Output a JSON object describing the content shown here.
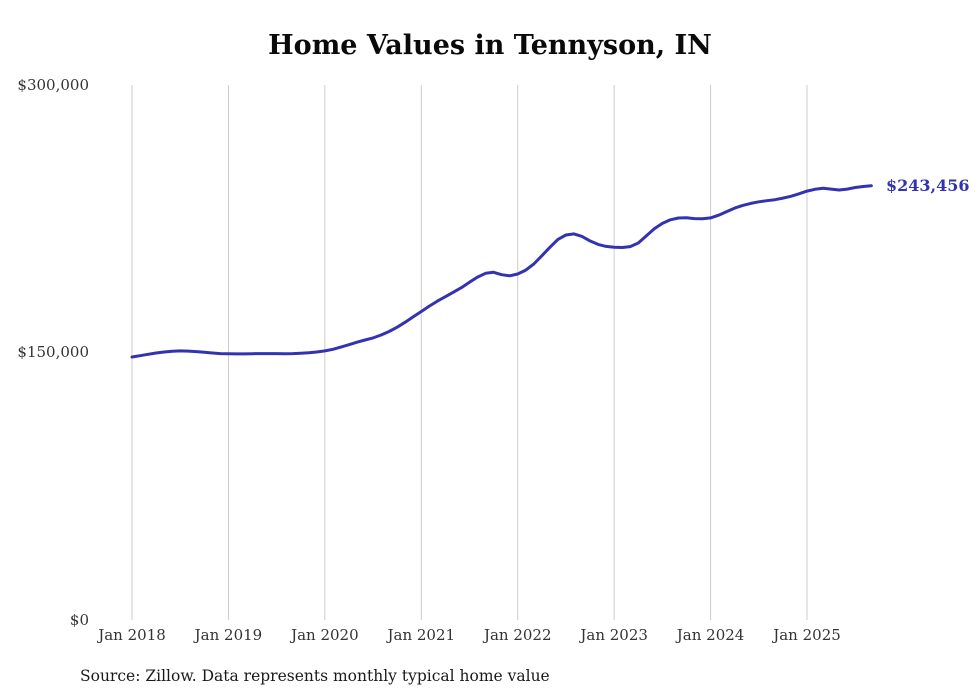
{
  "chart_data": {
    "type": "line",
    "title": "Home Values in Tennyson, IN",
    "source": "Source: Zillow. Data represents monthly typical home value",
    "end_label": "$243,456",
    "current_value": 243456,
    "line_color": "#3333b2",
    "grid_color": "#cccccc",
    "tick_text_color": "#333333",
    "ylim": [
      0,
      300000
    ],
    "grid": "vertical-only",
    "legend": "none",
    "y_ticks": [
      {
        "label": "$0",
        "value": 0
      },
      {
        "label": "$150,000",
        "value": 150000
      },
      {
        "label": "$300,000",
        "value": 300000
      }
    ],
    "x_ticks": [
      "Jan 2018",
      "Jan 2019",
      "Jan 2020",
      "Jan 2021",
      "Jan 2022",
      "Jan 2023",
      "Jan 2024",
      "Jan 2025"
    ],
    "x": [
      "2018-01",
      "2018-02",
      "2018-03",
      "2018-04",
      "2018-05",
      "2018-06",
      "2018-07",
      "2018-08",
      "2018-09",
      "2018-10",
      "2018-11",
      "2018-12",
      "2019-01",
      "2019-02",
      "2019-03",
      "2019-04",
      "2019-05",
      "2019-06",
      "2019-07",
      "2019-08",
      "2019-09",
      "2019-10",
      "2019-11",
      "2019-12",
      "2020-01",
      "2020-02",
      "2020-03",
      "2020-04",
      "2020-05",
      "2020-06",
      "2020-07",
      "2020-08",
      "2020-09",
      "2020-10",
      "2020-11",
      "2020-12",
      "2021-01",
      "2021-02",
      "2021-03",
      "2021-04",
      "2021-05",
      "2021-06",
      "2021-07",
      "2021-08",
      "2021-09",
      "2021-10",
      "2021-11",
      "2021-12",
      "2022-01",
      "2022-02",
      "2022-03",
      "2022-04",
      "2022-05",
      "2022-06",
      "2022-07",
      "2022-08",
      "2022-09",
      "2022-10",
      "2022-11",
      "2022-12",
      "2023-01",
      "2023-02",
      "2023-03",
      "2023-04",
      "2023-05",
      "2023-06",
      "2023-07",
      "2023-08",
      "2023-09",
      "2023-10",
      "2023-11",
      "2023-12",
      "2024-01",
      "2024-02",
      "2024-03",
      "2024-04",
      "2024-05",
      "2024-06",
      "2024-07",
      "2024-08",
      "2024-09",
      "2024-10",
      "2024-11",
      "2024-12",
      "2025-01",
      "2025-02",
      "2025-03",
      "2025-04",
      "2025-05",
      "2025-06",
      "2025-07",
      "2025-08",
      "2025-09"
    ],
    "values": [
      147500,
      148200,
      149000,
      149700,
      150300,
      150700,
      150900,
      150800,
      150500,
      150100,
      149700,
      149400,
      149300,
      149200,
      149200,
      149300,
      149400,
      149400,
      149400,
      149300,
      149400,
      149600,
      149900,
      150300,
      150900,
      151800,
      153000,
      154400,
      155800,
      157000,
      158200,
      159800,
      161800,
      164200,
      167000,
      170000,
      173000,
      176000,
      178800,
      181300,
      183800,
      186400,
      189400,
      192300,
      194400,
      195000,
      193600,
      193000,
      194000,
      196200,
      199600,
      204200,
      209000,
      213400,
      215900,
      216500,
      215100,
      212600,
      210600,
      209500,
      209000,
      208900,
      209400,
      211400,
      215400,
      219400,
      222400,
      224400,
      225400,
      225600,
      225100,
      225000,
      225500,
      227000,
      229000,
      231000,
      232500,
      233600,
      234500,
      235100,
      235700,
      236600,
      237600,
      239000,
      240500,
      241500,
      242100,
      241600,
      241100,
      241600,
      242500,
      243100,
      243456
    ]
  }
}
